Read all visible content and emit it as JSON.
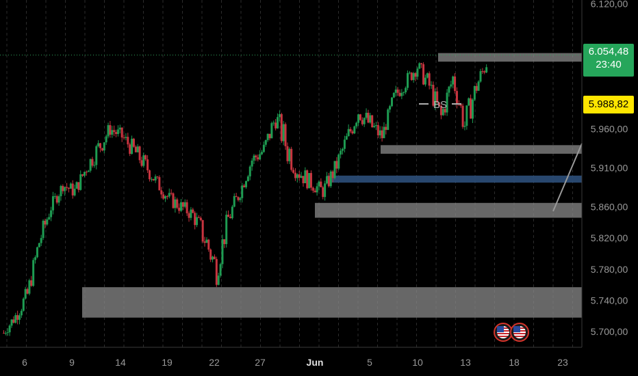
{
  "chart_data": {
    "type": "candlestick",
    "x_ticks": [
      "6",
      "9",
      "14",
      "19",
      "22",
      "27",
      "Jun",
      "5",
      "10",
      "13",
      "18",
      "23"
    ],
    "y_ticks": [
      "6.120,00",
      "5.960,00",
      "5.910,00",
      "5.860,00",
      "5.820,00",
      "5.780,00",
      "5.740,00",
      "5.700,00"
    ],
    "ylim": [
      5680,
      6125
    ],
    "grid": true,
    "last_price": "6.054,48",
    "countdown": "23:40",
    "marked_price": "5.988,82",
    "colors": {
      "up": "#1e9c52",
      "down": "#c8343f",
      "zone": "#8a8a8a",
      "blue_zone": "#2c4f7a",
      "last_tag": "#26a65b",
      "mark_tag": "#ffe600"
    },
    "annotation": "BS",
    "zones": [
      {
        "label": "upper grey",
        "y0": 6046,
        "y1": 6057
      },
      {
        "label": "grey",
        "y0": 5928,
        "y1": 5939
      },
      {
        "label": "blue",
        "y0": 5891,
        "y1": 5900
      },
      {
        "label": "grey",
        "y0": 5846,
        "y1": 5865
      },
      {
        "label": "large grey",
        "y0": 5718,
        "y1": 5757
      }
    ],
    "price_path": [
      [
        5692,
        5705
      ],
      [
        5710,
        5730
      ],
      [
        5735,
        5760
      ],
      [
        5800,
        5830
      ],
      [
        5850,
        5870
      ],
      [
        5880,
        5895
      ],
      [
        5870,
        5890
      ],
      [
        5900,
        5920
      ],
      [
        5920,
        5950
      ],
      [
        5950,
        5970
      ],
      [
        5940,
        5960
      ],
      [
        5920,
        5945
      ],
      [
        5900,
        5925
      ],
      [
        5880,
        5900
      ],
      [
        5860,
        5880
      ],
      [
        5850,
        5870
      ],
      [
        5840,
        5860
      ],
      [
        5800,
        5840
      ],
      [
        5760,
        5800
      ],
      [
        5830,
        5860
      ],
      [
        5870,
        5890
      ],
      [
        5910,
        5930
      ],
      [
        5920,
        5945
      ],
      [
        5960,
        5990
      ],
      [
        5910,
        5960
      ],
      [
        5890,
        5920
      ],
      [
        5880,
        5900
      ],
      [
        5870,
        5890
      ],
      [
        5895,
        5920
      ],
      [
        5930,
        5960
      ],
      [
        5970,
        5995
      ],
      [
        5950,
        5980
      ],
      [
        5940,
        5960
      ],
      [
        5990,
        6010
      ],
      [
        6010,
        6030
      ],
      [
        6030,
        6050
      ],
      [
        6000,
        6030
      ],
      [
        5960,
        5990
      ],
      [
        6010,
        6040
      ],
      [
        5945,
        5985
      ],
      [
        6000,
        6030
      ],
      [
        6040,
        6060
      ]
    ],
    "event_icons": [
      "us-flag",
      "us-flag"
    ]
  }
}
